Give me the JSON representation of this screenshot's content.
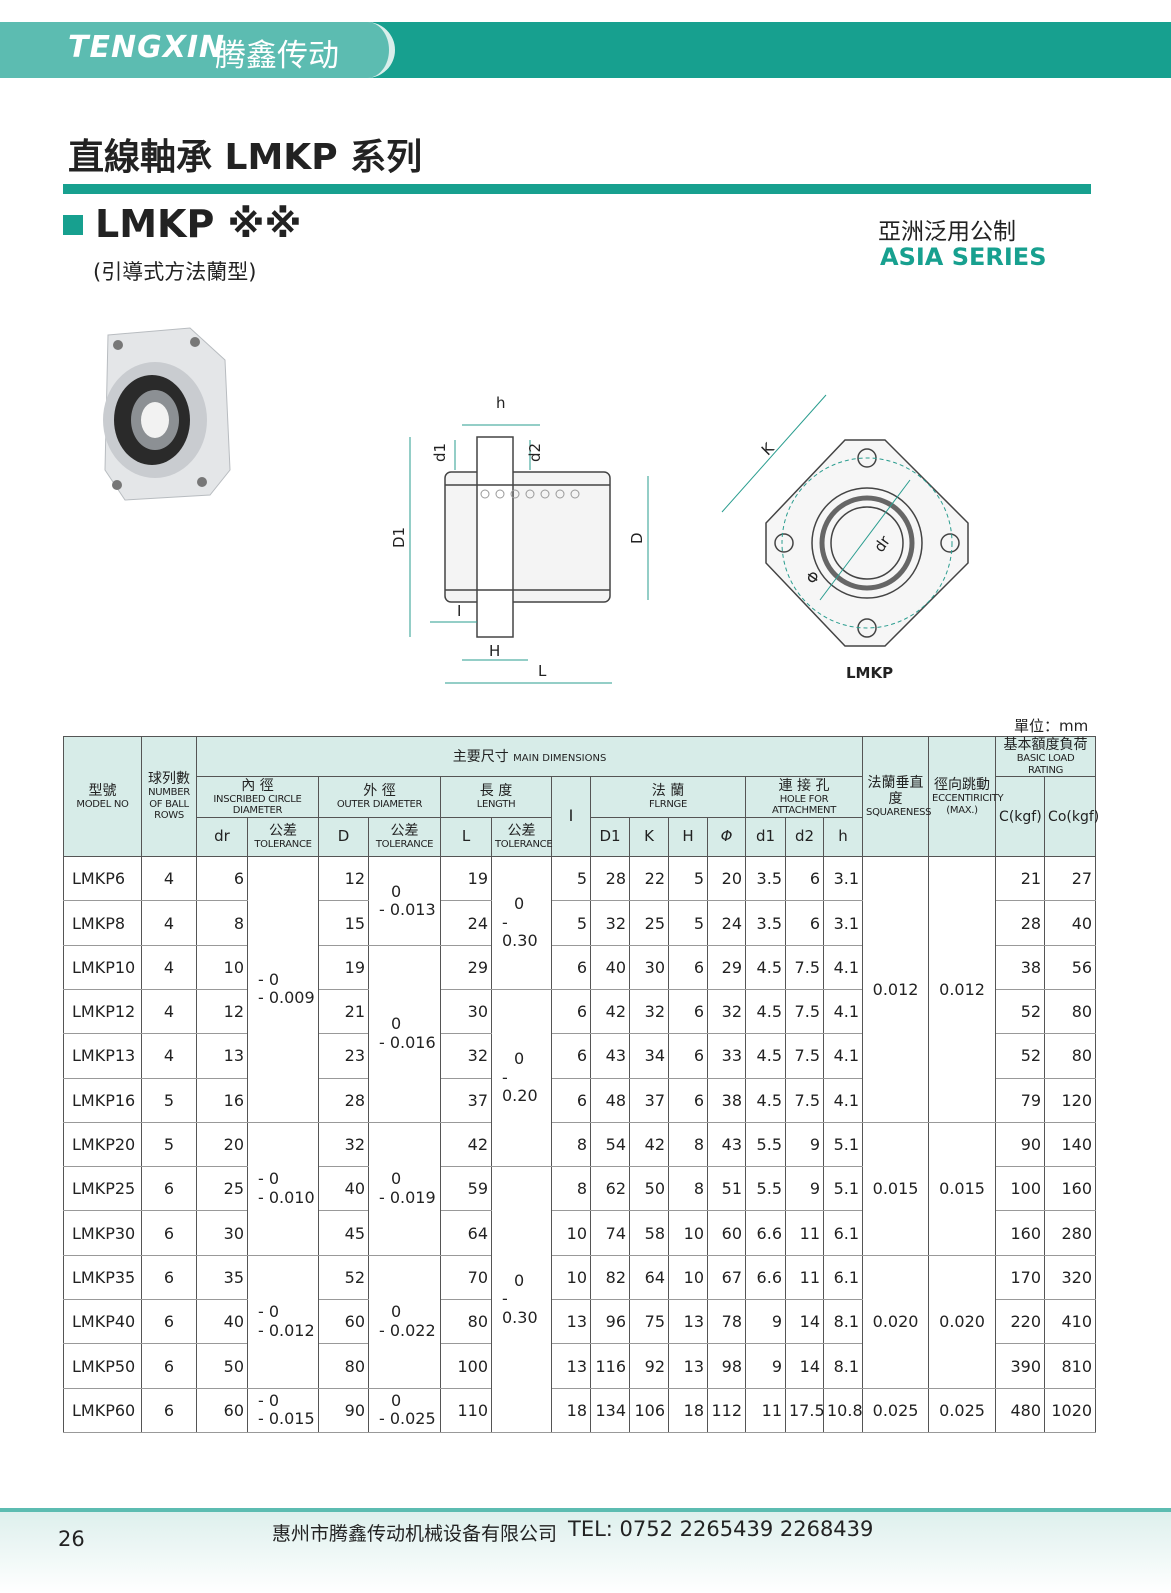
{
  "header": {
    "brand": "TENGXIN",
    "brand_cn": "腾鑫传动"
  },
  "title": "直線軸承 LMKP 系列",
  "model": {
    "name": "LMKP ※※",
    "subtitle": "(引導式方法蘭型)"
  },
  "series": {
    "cn": "亞洲泛用公制",
    "en": "ASIA SERIES"
  },
  "diagram": {
    "h": "h",
    "d1": "d1",
    "d2": "d2",
    "D1": "D1",
    "D": "D",
    "I": "I",
    "H": "H",
    "L": "L",
    "K": "K",
    "dr": "dr",
    "phi": "Φ",
    "caption": "LMKP"
  },
  "unit": "單位：mm",
  "table": {
    "header": {
      "model_cn": "型號",
      "model_en": "MODEL NO",
      "balls_cn": "球列數",
      "balls_en": "NUMBER OF BALL ROWS",
      "main_cn": "主要尺寸",
      "main_en": "MAIN DIMENSIONS",
      "squareness_cn": "法蘭垂直度",
      "squareness_en": "SQUARENESS",
      "ecc_cn": "徑向跳動",
      "ecc_en": "ECCENTIRICITY (MAX.)",
      "load_cn": "基本額度負荷",
      "load_en": "BASIC LOAD RATING",
      "inner_cn": "內 徑",
      "inner_en": "INSCRIBED CIRCLE DIAMETER",
      "outer_cn": "外 徑",
      "outer_en": "OUTER DIAMETER",
      "length_cn": "長 度",
      "length_en": "LENGTH",
      "I": "I",
      "flange_cn": "法 蘭",
      "flange_en": "FLRNGE",
      "hole_cn": "連 接 孔",
      "hole_en": "HOLE FOR ATTACHMENT",
      "C": "C(kgf)",
      "Co": "Co(kgf)",
      "dr": "dr",
      "tol_cn": "公差",
      "tol_en": "TOLERANCE",
      "D": "D",
      "L": "L",
      "D1": "D1",
      "K": "K",
      "H": "H",
      "phi": "Φ",
      "d1": "d1",
      "d2": "d2",
      "h": "h"
    },
    "rows": [
      {
        "model": "LMKP6",
        "balls": "4",
        "dr": "6",
        "D": "12",
        "L": "19",
        "I": "5",
        "D1": "28",
        "K": "22",
        "H": "5",
        "phi": "20",
        "d1": "3.5",
        "d2": "6",
        "h": "3.1",
        "C": "21",
        "Co": "27"
      },
      {
        "model": "LMKP8",
        "balls": "4",
        "dr": "8",
        "D": "15",
        "L": "24",
        "I": "5",
        "D1": "32",
        "K": "25",
        "H": "5",
        "phi": "24",
        "d1": "3.5",
        "d2": "6",
        "h": "3.1",
        "C": "28",
        "Co": "40"
      },
      {
        "model": "LMKP10",
        "balls": "4",
        "dr": "10",
        "D": "19",
        "L": "29",
        "I": "6",
        "D1": "40",
        "K": "30",
        "H": "6",
        "phi": "29",
        "d1": "4.5",
        "d2": "7.5",
        "h": "4.1",
        "C": "38",
        "Co": "56"
      },
      {
        "model": "LMKP12",
        "balls": "4",
        "dr": "12",
        "D": "21",
        "L": "30",
        "I": "6",
        "D1": "42",
        "K": "32",
        "H": "6",
        "phi": "32",
        "d1": "4.5",
        "d2": "7.5",
        "h": "4.1",
        "C": "52",
        "Co": "80"
      },
      {
        "model": "LMKP13",
        "balls": "4",
        "dr": "13",
        "D": "23",
        "L": "32",
        "I": "6",
        "D1": "43",
        "K": "34",
        "H": "6",
        "phi": "33",
        "d1": "4.5",
        "d2": "7.5",
        "h": "4.1",
        "C": "52",
        "Co": "80"
      },
      {
        "model": "LMKP16",
        "balls": "5",
        "dr": "16",
        "D": "28",
        "L": "37",
        "I": "6",
        "D1": "48",
        "K": "37",
        "H": "6",
        "phi": "38",
        "d1": "4.5",
        "d2": "7.5",
        "h": "4.1",
        "C": "79",
        "Co": "120"
      },
      {
        "model": "LMKP20",
        "balls": "5",
        "dr": "20",
        "D": "32",
        "L": "42",
        "I": "8",
        "D1": "54",
        "K": "42",
        "H": "8",
        "phi": "43",
        "d1": "5.5",
        "d2": "9",
        "h": "5.1",
        "C": "90",
        "Co": "140"
      },
      {
        "model": "LMKP25",
        "balls": "6",
        "dr": "25",
        "D": "40",
        "L": "59",
        "I": "8",
        "D1": "62",
        "K": "50",
        "H": "8",
        "phi": "51",
        "d1": "5.5",
        "d2": "9",
        "h": "5.1",
        "C": "100",
        "Co": "160"
      },
      {
        "model": "LMKP30",
        "balls": "6",
        "dr": "30",
        "D": "45",
        "L": "64",
        "I": "10",
        "D1": "74",
        "K": "58",
        "H": "10",
        "phi": "60",
        "d1": "6.6",
        "d2": "11",
        "h": "6.1",
        "C": "160",
        "Co": "280"
      },
      {
        "model": "LMKP35",
        "balls": "6",
        "dr": "35",
        "D": "52",
        "L": "70",
        "I": "10",
        "D1": "82",
        "K": "64",
        "H": "10",
        "phi": "67",
        "d1": "6.6",
        "d2": "11",
        "h": "6.1",
        "C": "170",
        "Co": "320"
      },
      {
        "model": "LMKP40",
        "balls": "6",
        "dr": "40",
        "D": "60",
        "L": "80",
        "I": "13",
        "D1": "96",
        "K": "75",
        "H": "13",
        "phi": "78",
        "d1": "9",
        "d2": "14",
        "h": "8.1",
        "C": "220",
        "Co": "410"
      },
      {
        "model": "LMKP50",
        "balls": "6",
        "dr": "50",
        "D": "80",
        "L": "100",
        "I": "13",
        "D1": "116",
        "K": "92",
        "H": "13",
        "phi": "98",
        "d1": "9",
        "d2": "14",
        "h": "8.1",
        "C": "390",
        "Co": "810"
      },
      {
        "model": "LMKP60",
        "balls": "6",
        "dr": "60",
        "D": "90",
        "L": "110",
        "I": "18",
        "D1": "134",
        "K": "106",
        "H": "18",
        "phi": "112",
        "d1": "11",
        "d2": "17.5",
        "h": "10.8",
        "C": "480",
        "Co": "1020"
      }
    ],
    "dr_tolerance": [
      [
        "- 0",
        "- 0.009"
      ],
      null,
      null,
      null,
      null,
      null,
      [
        "- 0",
        "- 0.010"
      ],
      null,
      null,
      [
        "- 0",
        "- 0.012"
      ],
      null,
      null,
      [
        "- 0",
        "- 0.015"
      ]
    ],
    "D_tolerance": [
      [
        "0",
        "- 0.013"
      ],
      null,
      [
        "0",
        "- 0.016"
      ],
      null,
      null,
      null,
      [
        "0",
        "- 0.019"
      ],
      null,
      null,
      [
        "0",
        "- 0.022"
      ],
      null,
      null,
      [
        "0",
        "- 0.025"
      ]
    ],
    "L_tolerance": [
      [
        "0",
        "- 0.30"
      ],
      null,
      null,
      [
        "0",
        "- 0.20"
      ],
      null,
      null,
      null,
      [
        "0",
        "- 0.30"
      ],
      null,
      null,
      null,
      null,
      null
    ],
    "squareness": [
      "0.012",
      null,
      null,
      null,
      null,
      null,
      "0.015",
      null,
      null,
      "0.020",
      null,
      null,
      "0.025"
    ],
    "eccentricity": [
      "0.012",
      null,
      null,
      null,
      null,
      null,
      "0.015",
      null,
      null,
      "0.020",
      null,
      null,
      "0.025"
    ]
  },
  "footer": {
    "page": "26",
    "company": "惠州市腾鑫传动机械设备有限公司",
    "tel": "TEL: 0752  2265439  2268439"
  }
}
